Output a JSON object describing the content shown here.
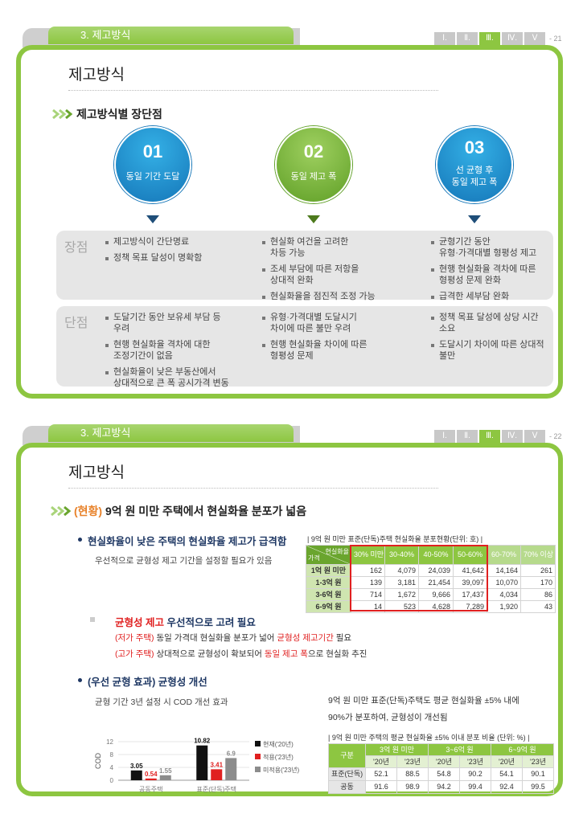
{
  "slides": [
    {
      "section": "3. 제고방식",
      "nav": [
        "Ⅰ.",
        "Ⅱ.",
        "Ⅲ.",
        "Ⅳ.",
        "Ⅴ"
      ],
      "active_nav": 2,
      "page": "- 21",
      "title": "제고방식",
      "heading": "제고방식별 장단점",
      "methods": [
        {
          "number": "01",
          "label": "동일 기간 도달"
        },
        {
          "number": "02",
          "label": "동일 제고 폭"
        },
        {
          "number": "03",
          "label": "선 균형 후\n동일 제고 폭"
        }
      ],
      "rows": [
        {
          "label": "장점",
          "columns": [
            [
              "제고방식이 간단명료",
              "정책 목표 달성이 명확함"
            ],
            [
              "현실화 여건을 고려한\n차등 가능",
              "조세 부담에 따른 저항을\n상대적 완화",
              "현실화율을 점진적 조정 가능"
            ],
            [
              "균형기간 동안\n유형·가격대별 형평성 제고",
              "현행 현실화율 격차에 따른\n형평성 문제 완화",
              "급격한 세부담 완화"
            ]
          ]
        },
        {
          "label": "단점",
          "columns": [
            [
              "도달기간 동안 보유세 부담 등\n우려",
              "현행 현실화율 격차에 대한\n조정기간이 없음",
              "현실화율이 낮은 부동산에서\n상대적으로 큰 폭 공시가격 변동"
            ],
            [
              "유형·가격대별 도달시기\n차이에 따른 불만 우려",
              "현행 현실화율 차이에 따른\n형평성 문제"
            ],
            [
              "정책 목표 달성에 상당 시간\n소요",
              "도달시기 차이에 따른 상대적\n불만"
            ]
          ]
        }
      ]
    },
    {
      "section": "3. 제고방식",
      "nav": [
        "Ⅰ.",
        "Ⅱ.",
        "Ⅲ.",
        "Ⅳ.",
        "Ⅴ"
      ],
      "active_nav": 2,
      "page": "- 22",
      "title": "제고방식",
      "heading_tag": "(현황)",
      "heading": "9억 원 미만 주택에서 현실화율 분포가 넓음",
      "point": "현실화율이 낮은 주택의 현실화율 제고가 급격함",
      "note": "우선적으로 균형성 제고 기간을 설정할 필요가 있음",
      "table1": {
        "caption": "| 9억 원 미만 표준(단독)주택 현실화율 분포현황(단위: 호) |",
        "corner_top": "현실화율",
        "corner_bottom": "가격",
        "columns": [
          "30% 미만",
          "30-40%",
          "40-50%",
          "50-60%",
          "60-70%",
          "70% 이상"
        ],
        "rows": [
          {
            "label": "1억 원 미만",
            "cells": [
              "162",
              "4,079",
              "24,039",
              "41,642",
              "14,164",
              "261"
            ]
          },
          {
            "label": "1-3억 원",
            "cells": [
              "139",
              "3,181",
              "21,454",
              "39,097",
              "10,070",
              "170"
            ]
          },
          {
            "label": "3-6억 원",
            "cells": [
              "714",
              "1,672",
              "9,666",
              "17,437",
              "4,034",
              "86"
            ]
          },
          {
            "label": "6-9억 원",
            "cells": [
              "14",
              "523",
              "4,628",
              "7,289",
              "1,920",
              "43"
            ]
          }
        ]
      },
      "callout": {
        "title": [
          {
            "text": "균형성 제고",
            "em": true
          },
          {
            "text": " 우선적으로 고려 필요"
          }
        ],
        "lines": [
          [
            {
              "text": "(저가 주택)",
              "em": true
            },
            {
              "text": " 동일 가격대 현실화율 분포가 넓어 "
            },
            {
              "text": "균형성 제고기간",
              "em": true
            },
            {
              "text": " 필요"
            }
          ],
          [
            {
              "text": "(고가 주택)",
              "em": true
            },
            {
              "text": " 상대적으로 균형성이 확보되어 "
            },
            {
              "text": "동일 제고 폭",
              "em": true
            },
            {
              "text": "으로 현실화 추진"
            }
          ]
        ]
      },
      "point2": "(우선 균형 효과) 균형성 개선",
      "chart_caption": "균형 기간 3년 설정 시 COD 개선 효과",
      "chart_data": {
        "type": "bar",
        "ylabel": "COD",
        "categories": [
          "공동주택",
          "표준(단독)주택"
        ],
        "series": [
          {
            "name": "현재('20년)",
            "color": "#111111",
            "values": [
              3.05,
              10.82
            ]
          },
          {
            "name": "적용('23년)",
            "color": "#e02020",
            "values": [
              0.54,
              3.41
            ]
          },
          {
            "name": "미적용('23년)",
            "color": "#8c8c8c",
            "values": [
              1.55,
              6.9
            ]
          }
        ],
        "ylim": [
          0,
          12
        ],
        "yticks": [
          0,
          4,
          8,
          12
        ],
        "grid": true
      },
      "summary": "9억 원 미만 표준(단독)주택도 평균 현실화율 ±5% 내에\n90%가 분포하여, 균형성이 개선됨",
      "table2": {
        "caption": "| 9억 원 미만 주택의 평균 현실화율 ±5% 이내 분포 비율 (단위: %) |",
        "corner": "구분",
        "groups": [
          "3억 원 미만",
          "3~6억 원",
          "6~9억 원"
        ],
        "subheaders": [
          "'20년",
          "'23년",
          "'20년",
          "'23년",
          "'20년",
          "'23년"
        ],
        "rows": [
          {
            "label": "표준(단독)",
            "cells": [
              52.1,
              88.5,
              54.8,
              90.2,
              54.1,
              90.1
            ]
          },
          {
            "label": "공동",
            "cells": [
              91.6,
              98.9,
              94.2,
              99.4,
              92.4,
              99.5
            ]
          }
        ]
      }
    }
  ]
}
